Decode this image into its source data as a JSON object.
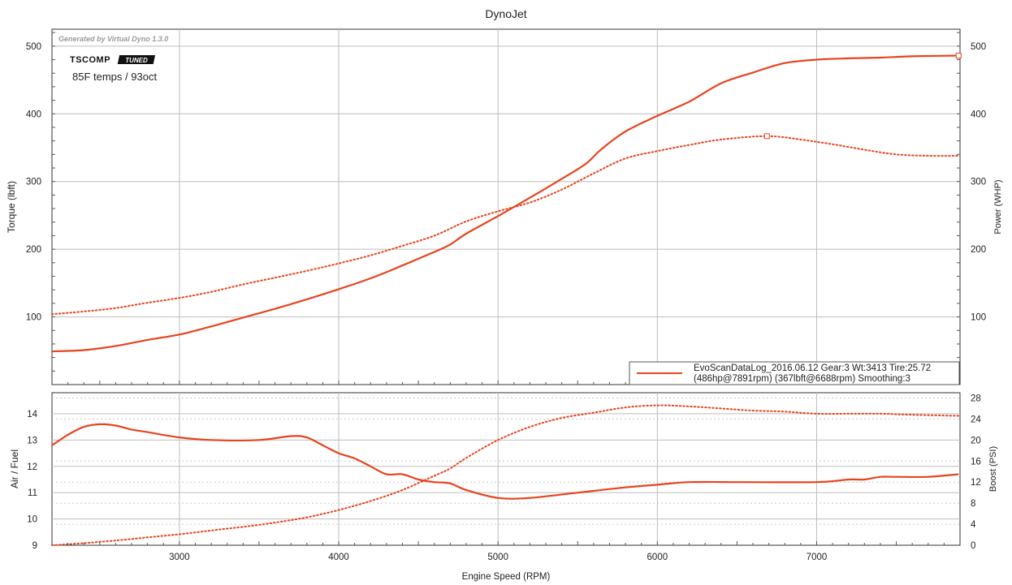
{
  "title": "DynoJet",
  "watermark": "Generated by Virtual Dyno 1.3.0",
  "logo": {
    "text": "TSCOMP",
    "badge": "TUNED"
  },
  "annotation": "85F temps / 93oct",
  "xlabel": "Engine Speed (RPM)",
  "colors": {
    "series": "#e8431e",
    "grid": "#bdbdbd",
    "frame": "#333333"
  },
  "chart_data": [
    {
      "type": "line",
      "panel": "top",
      "ylabel_left": "Torque (lbft)",
      "ylabel_right": "Power (WHP)",
      "xlim": [
        2200,
        7900
      ],
      "ylim": [
        0,
        525
      ],
      "xticks": [
        3000,
        4000,
        5000,
        6000,
        7000
      ],
      "yticks": [
        100,
        200,
        300,
        400,
        500
      ],
      "grid": true,
      "legend": {
        "placement": "bottom-right",
        "line1": "EvoScanDataLog_2016.06.12 Gear:3 Wt:3413 Tire:25.72",
        "line2": "(486hp@7891rpm) (367lbft@6688rpm) Smoothing:3"
      },
      "series": [
        {
          "role": "power",
          "style": "solid",
          "axis": "right",
          "x": [
            2200,
            2400,
            2600,
            2800,
            3000,
            3200,
            3400,
            3600,
            3800,
            4000,
            4200,
            4400,
            4600,
            4700,
            4800,
            5000,
            5200,
            5400,
            5550,
            5650,
            5800,
            6000,
            6200,
            6400,
            6600,
            6800,
            7000,
            7200,
            7400,
            7600,
            7891
          ],
          "values": [
            49,
            51,
            57,
            66,
            74,
            86,
            99,
            112,
            126,
            141,
            157,
            176,
            196,
            207,
            223,
            249,
            276,
            304,
            326,
            348,
            374,
            397,
            418,
            445,
            461,
            475,
            480,
            482,
            483,
            485,
            486
          ]
        },
        {
          "role": "torque",
          "style": "dotted",
          "axis": "left",
          "x": [
            2200,
            2400,
            2600,
            2800,
            3000,
            3200,
            3400,
            3600,
            3800,
            4000,
            4200,
            4400,
            4600,
            4800,
            5000,
            5200,
            5400,
            5600,
            5800,
            6000,
            6200,
            6400,
            6688,
            6900,
            7100,
            7300,
            7500,
            7700,
            7891
          ],
          "values": [
            104,
            108,
            113,
            121,
            128,
            137,
            148,
            158,
            168,
            179,
            191,
            205,
            220,
            241,
            256,
            269,
            288,
            312,
            334,
            345,
            354,
            362,
            367,
            362,
            355,
            347,
            340,
            338,
            338
          ]
        }
      ]
    },
    {
      "type": "line",
      "panel": "bottom",
      "ylabel_left": "Air / Fuel",
      "ylabel_right": "Boost (PSI)",
      "xlim": [
        2200,
        7900
      ],
      "ylim_left": [
        9,
        14.8
      ],
      "ylim_right": [
        0,
        29
      ],
      "yticks_left": [
        9,
        10,
        11,
        12,
        13,
        14
      ],
      "yticks_right": [
        0,
        4,
        8,
        12,
        16,
        20,
        24,
        28
      ],
      "grid": true,
      "series": [
        {
          "role": "air-fuel",
          "style": "solid",
          "axis": "left",
          "x": [
            2200,
            2300,
            2400,
            2500,
            2600,
            2700,
            2800,
            3000,
            3200,
            3500,
            3700,
            3800,
            3900,
            4000,
            4100,
            4200,
            4300,
            4400,
            4500,
            4600,
            4700,
            4800,
            5000,
            5200,
            5500,
            5800,
            6000,
            6200,
            6500,
            7000,
            7200,
            7300,
            7400,
            7500,
            7700,
            7891
          ],
          "values": [
            12.8,
            13.2,
            13.5,
            13.6,
            13.55,
            13.4,
            13.3,
            13.1,
            13.0,
            13.0,
            13.15,
            13.1,
            12.8,
            12.5,
            12.3,
            12.0,
            11.7,
            11.7,
            11.5,
            11.4,
            11.35,
            11.1,
            10.8,
            10.8,
            11.0,
            11.2,
            11.3,
            11.4,
            11.4,
            11.4,
            11.5,
            11.5,
            11.6,
            11.6,
            11.6,
            11.7
          ]
        },
        {
          "role": "boost",
          "style": "dotted",
          "axis": "right",
          "x": [
            2200,
            2400,
            2600,
            2800,
            3000,
            3200,
            3400,
            3600,
            3800,
            4000,
            4200,
            4400,
            4600,
            4700,
            4800,
            5000,
            5200,
            5400,
            5600,
            5800,
            6000,
            6200,
            6400,
            6600,
            6800,
            7000,
            7200,
            7400,
            7600,
            7891
          ],
          "values": [
            0,
            0.4,
            0.9,
            1.5,
            2.1,
            2.8,
            3.5,
            4.3,
            5.3,
            6.7,
            8.4,
            10.5,
            13.2,
            14.6,
            16.6,
            20.0,
            22.5,
            24.2,
            25.2,
            26.2,
            26.6,
            26.4,
            26.0,
            25.6,
            25.4,
            25.0,
            25.0,
            25.0,
            24.8,
            24.6
          ]
        }
      ]
    }
  ]
}
